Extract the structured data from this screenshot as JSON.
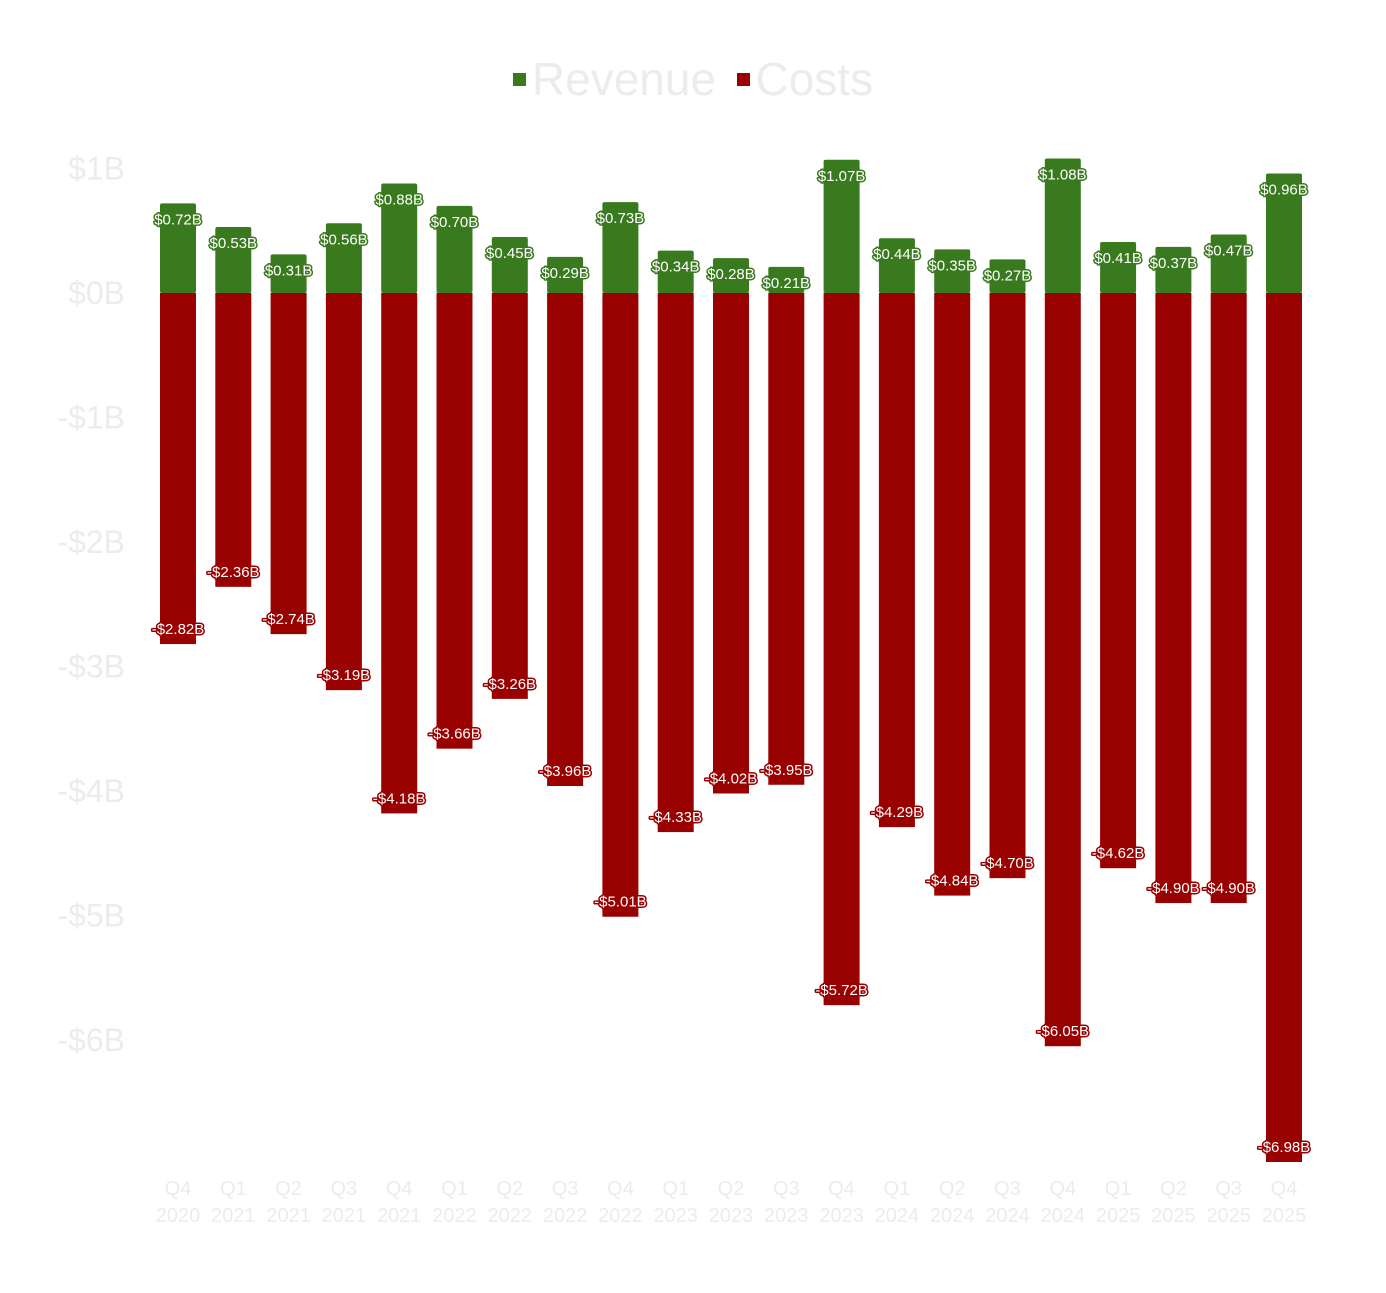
{
  "legend": {
    "revenue_label": "Revenue",
    "costs_label": "Costs"
  },
  "colors": {
    "revenue": "#3a7a1f",
    "costs": "#990000",
    "tick_text": "#ececec"
  },
  "chart_data": {
    "type": "bar",
    "stacked": true,
    "categories": [
      [
        "Q4",
        "2020"
      ],
      [
        "Q1",
        "2021"
      ],
      [
        "Q2",
        "2021"
      ],
      [
        "Q3",
        "2021"
      ],
      [
        "Q4",
        "2021"
      ],
      [
        "Q1",
        "2022"
      ],
      [
        "Q2",
        "2022"
      ],
      [
        "Q3",
        "2022"
      ],
      [
        "Q4",
        "2022"
      ],
      [
        "Q1",
        "2023"
      ],
      [
        "Q2",
        "2023"
      ],
      [
        "Q3",
        "2023"
      ],
      [
        "Q4",
        "2023"
      ],
      [
        "Q1",
        "2024"
      ],
      [
        "Q2",
        "2024"
      ],
      [
        "Q3",
        "2024"
      ],
      [
        "Q4",
        "2024"
      ],
      [
        "Q1",
        "2025"
      ],
      [
        "Q2",
        "2025"
      ],
      [
        "Q3",
        "2025"
      ],
      [
        "Q4",
        "2025"
      ]
    ],
    "series": [
      {
        "name": "Revenue",
        "values": [
          0.72,
          0.53,
          0.31,
          0.56,
          0.88,
          0.7,
          0.45,
          0.29,
          0.73,
          0.34,
          0.28,
          0.21,
          1.07,
          0.44,
          0.35,
          0.27,
          1.08,
          0.41,
          0.37,
          0.47,
          0.96
        ],
        "labels": [
          "$0.72B",
          "$0.53B",
          "$0.31B",
          "$0.56B",
          "$0.88B",
          "$0.70B",
          "$0.45B",
          "$0.29B",
          "$0.73B",
          "$0.34B",
          "$0.28B",
          "$0.21B",
          "$1.07B",
          "$0.44B",
          "$0.35B",
          "$0.27B",
          "$1.08B",
          "$0.41B",
          "$0.37B",
          "$0.47B",
          "$0.96B"
        ]
      },
      {
        "name": "Costs",
        "values": [
          -2.82,
          -2.36,
          -2.74,
          -3.19,
          -4.18,
          -3.66,
          -3.26,
          -3.96,
          -5.01,
          -4.33,
          -4.02,
          -3.95,
          -5.72,
          -4.29,
          -4.84,
          -4.7,
          -6.05,
          -4.62,
          -4.9,
          -4.9,
          -6.98
        ],
        "labels": [
          "-$2.82B",
          "-$2.36B",
          "-$2.74B",
          "-$3.19B",
          "-$4.18B",
          "-$3.66B",
          "-$3.26B",
          "-$3.96B",
          "-$5.01B",
          "-$4.33B",
          "-$4.02B",
          "-$3.95B",
          "-$5.72B",
          "-$4.29B",
          "-$4.84B",
          "-$4.70B",
          "-$6.05B",
          "-$4.62B",
          "-$4.90B",
          "-$4.90B",
          "-$6.98B"
        ]
      }
    ],
    "y_ticks": [
      1,
      0,
      -1,
      -2,
      -3,
      -4,
      -5,
      -6
    ],
    "y_tick_labels": [
      "$1B",
      "$0B",
      "-$1B",
      "-$2B",
      "-$3B",
      "-$4B",
      "-$5B",
      "-$6B"
    ],
    "ylim": [
      -7,
      1
    ],
    "legend_position": "top-center",
    "grid": false
  }
}
